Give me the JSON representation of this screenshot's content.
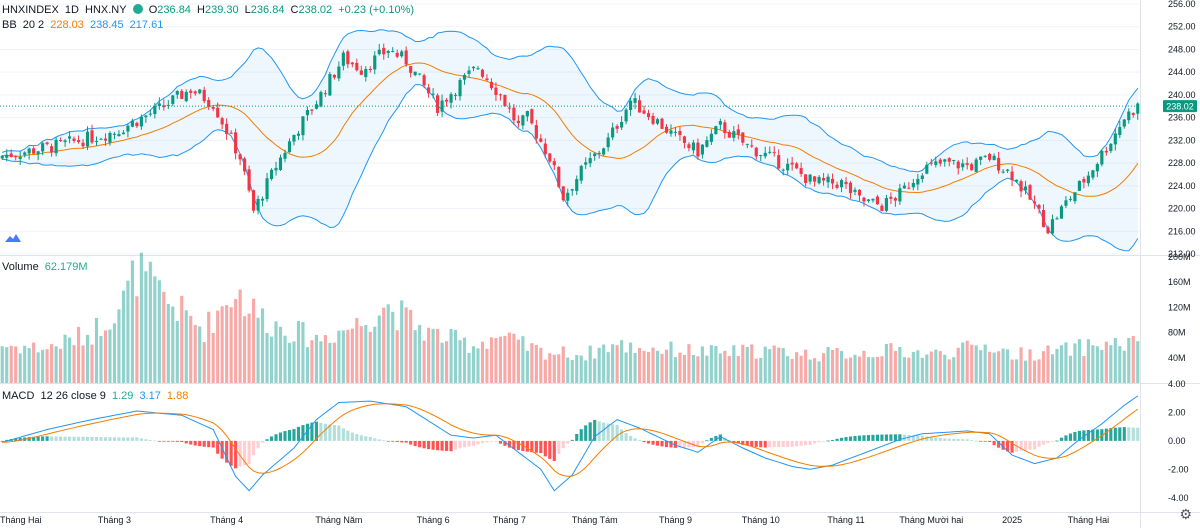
{
  "header": {
    "symbol": "HNXINDEX",
    "interval": "1D",
    "exchange": "HNX.NY",
    "open_label": "O",
    "open": "236.84",
    "high_label": "H",
    "high": "239.30",
    "low_label": "L",
    "low": "236.84",
    "close_label": "C",
    "close": "238.02",
    "change": "+0.23 (+0.10%)"
  },
  "bb_legend": {
    "name": "BB",
    "params": "20 2",
    "basis": "228.03",
    "upper": "238.45",
    "lower": "217.61"
  },
  "volume_legend": {
    "name": "Volume",
    "value": "62.179M"
  },
  "macd_legend": {
    "name": "MACD",
    "params": "12 26 close 9",
    "hist": "1.29",
    "macd": "3.17",
    "signal": "1.88"
  },
  "colors": {
    "up": "#089981",
    "down": "#f23645",
    "bb_band": "#2196f3",
    "bb_basis": "#f57c00",
    "macd_line": "#2196f3",
    "signal_line": "#f57c00"
  },
  "chart_data": {
    "type": "candlestick",
    "title": "HNXINDEX 1D HNX.NY",
    "price_axis": {
      "min": 212.0,
      "max": 256.0,
      "ticks": [
        "256.00",
        "252.00",
        "248.00",
        "244.00",
        "240.00",
        "236.00",
        "232.00",
        "228.00",
        "224.00",
        "220.00",
        "216.00",
        "212.00"
      ],
      "last_price_label": "238.02"
    },
    "volume_axis": {
      "max": 200,
      "ticks": [
        "200M",
        "160M",
        "120M",
        "80M",
        "40M"
      ]
    },
    "macd_axis": {
      "min": -5,
      "max": 4,
      "ticks": [
        "4.00",
        "2.00",
        "0.00",
        "-2.00",
        "-4.00"
      ]
    },
    "x_labels": [
      "Tháng Hai",
      "Tháng 3",
      "Tháng 4",
      "Tháng Năm",
      "Tháng 6",
      "Tháng 7",
      "Tháng Tám",
      "Tháng 9",
      "Tháng 10",
      "Tháng 11",
      "Tháng Mười hai",
      "2025",
      "Tháng Hai"
    ],
    "close_anchors": [
      [
        0,
        229.3
      ],
      [
        12,
        231.0
      ],
      [
        25,
        233.5
      ],
      [
        35,
        237.5
      ],
      [
        42,
        241.0
      ],
      [
        47,
        238.5
      ],
      [
        53,
        229.0
      ],
      [
        56,
        219.5
      ],
      [
        61,
        227.5
      ],
      [
        65,
        233.0
      ],
      [
        71,
        240.0
      ],
      [
        76,
        246.5
      ],
      [
        80,
        244.5
      ],
      [
        86,
        248.0
      ],
      [
        90,
        246.0
      ],
      [
        97,
        238.0
      ],
      [
        102,
        242.0
      ],
      [
        106,
        245.0
      ],
      [
        111,
        240.0
      ],
      [
        115,
        234.5
      ],
      [
        117,
        236.0
      ],
      [
        122,
        229.0
      ],
      [
        125,
        222.0
      ],
      [
        129,
        226.5
      ],
      [
        135,
        232.0
      ],
      [
        140,
        239.0
      ],
      [
        145,
        236.0
      ],
      [
        150,
        232.5
      ],
      [
        155,
        230.0
      ],
      [
        160,
        234.5
      ],
      [
        166,
        231.0
      ],
      [
        171,
        229.0
      ],
      [
        176,
        227.0
      ],
      [
        181,
        224.5
      ],
      [
        187,
        224.5
      ],
      [
        191,
        221.5
      ],
      [
        196,
        220.5
      ],
      [
        200,
        222.5
      ],
      [
        205,
        227.0
      ],
      [
        210,
        228.0
      ],
      [
        216,
        227.5
      ],
      [
        220,
        229.0
      ],
      [
        225,
        226.0
      ],
      [
        230,
        220.5
      ],
      [
        233,
        216.5
      ],
      [
        237,
        221.0
      ],
      [
        242,
        226.0
      ],
      [
        247,
        232.0
      ],
      [
        250,
        236.0
      ],
      [
        253,
        238.0
      ]
    ],
    "volume_anchors": [
      [
        0,
        60
      ],
      [
        10,
        55
      ],
      [
        20,
        80
      ],
      [
        27,
        130
      ],
      [
        30,
        180
      ],
      [
        35,
        140
      ],
      [
        45,
        85
      ],
      [
        52,
        150
      ],
      [
        55,
        120
      ],
      [
        60,
        95
      ],
      [
        70,
        70
      ],
      [
        80,
        95
      ],
      [
        85,
        125
      ],
      [
        95,
        80
      ],
      [
        105,
        60
      ],
      [
        110,
        75
      ],
      [
        120,
        50
      ],
      [
        130,
        45
      ],
      [
        135,
        60
      ],
      [
        145,
        55
      ],
      [
        160,
        48
      ],
      [
        170,
        52
      ],
      [
        180,
        45
      ],
      [
        190,
        48
      ],
      [
        200,
        52
      ],
      [
        207,
        45
      ],
      [
        220,
        60
      ],
      [
        225,
        45
      ],
      [
        235,
        50
      ],
      [
        245,
        62
      ],
      [
        253,
        62
      ]
    ],
    "macd_anchors": [
      [
        0,
        -0.1
      ],
      [
        10,
        0.8
      ],
      [
        20,
        1.5
      ],
      [
        30,
        2.1
      ],
      [
        40,
        1.8
      ],
      [
        47,
        0.8
      ],
      [
        52,
        -2.5
      ],
      [
        55,
        -3.5
      ],
      [
        58,
        -2.4
      ],
      [
        65,
        -0.5
      ],
      [
        70,
        1.5
      ],
      [
        75,
        2.7
      ],
      [
        82,
        2.8
      ],
      [
        90,
        2.4
      ],
      [
        95,
        1.4
      ],
      [
        100,
        0.4
      ],
      [
        105,
        0.2
      ],
      [
        110,
        0.4
      ],
      [
        115,
        -0.8
      ],
      [
        120,
        -2.0
      ],
      [
        123,
        -3.5
      ],
      [
        127,
        -2.4
      ],
      [
        132,
        0.3
      ],
      [
        137,
        1.5
      ],
      [
        142,
        0.9
      ],
      [
        146,
        0.3
      ],
      [
        150,
        -0.3
      ],
      [
        155,
        -0.8
      ],
      [
        160,
        0.3
      ],
      [
        165,
        -0.5
      ],
      [
        170,
        -1.2
      ],
      [
        176,
        -1.8
      ],
      [
        180,
        -2.0
      ],
      [
        185,
        -1.7
      ],
      [
        190,
        -1.1
      ],
      [
        195,
        -0.5
      ],
      [
        200,
        0.1
      ],
      [
        205,
        0.5
      ],
      [
        210,
        0.6
      ],
      [
        215,
        0.7
      ],
      [
        220,
        0.5
      ],
      [
        225,
        -1.0
      ],
      [
        230,
        -1.6
      ],
      [
        235,
        -1.2
      ],
      [
        240,
        0.1
      ],
      [
        245,
        1.2
      ],
      [
        250,
        2.5
      ],
      [
        253,
        3.17
      ]
    ]
  }
}
